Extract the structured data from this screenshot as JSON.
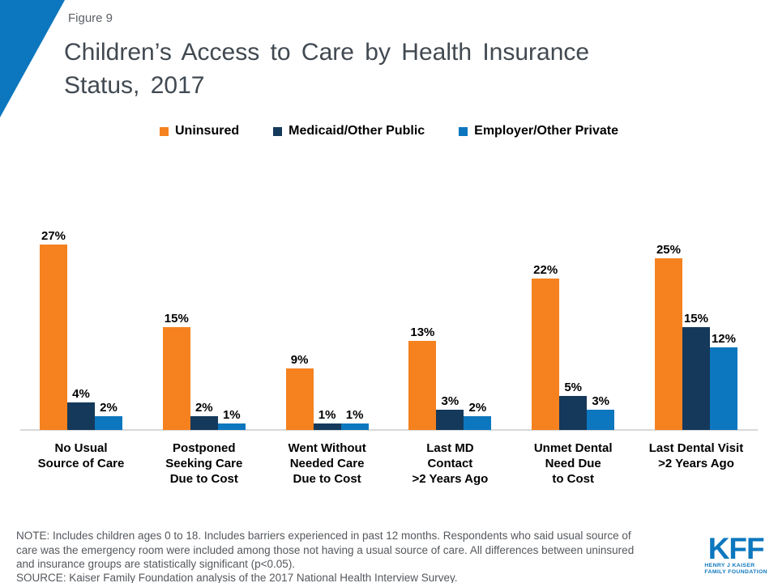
{
  "header": {
    "figure_label": "Figure 9",
    "title": "Children’s Access to Care by Health Insurance\nStatus, 2017"
  },
  "colors": {
    "corner_accent": "#0c77be",
    "axis_line": "#d9d9d9",
    "title_text": "#414951",
    "note_text": "#54585d",
    "logo_blue": "#0c77be"
  },
  "chart_data": {
    "type": "bar",
    "title": "Children’s Access to Care by Health Insurance Status, 2017",
    "xlabel": "",
    "ylabel": "",
    "ylim": [
      0,
      30
    ],
    "grid": false,
    "legend_position": "top",
    "value_suffix": "%",
    "categories": [
      "No Usual\nSource of Care",
      "Postponed\nSeeking Care\nDue to Cost",
      "Went Without\nNeeded Care\nDue to Cost",
      "Last MD\nContact\n>2 Years Ago",
      "Unmet Dental\nNeed Due\nto Cost",
      "Last Dental Visit\n>2 Years Ago"
    ],
    "series": [
      {
        "name": "Uninsured",
        "color": "#f5821f",
        "values": [
          27,
          15,
          9,
          13,
          22,
          25
        ],
        "labels": [
          "27%",
          "15%",
          "9%",
          "13%",
          "22%",
          "25%"
        ]
      },
      {
        "name": "Medicaid/Other Public",
        "color": "#14395b",
        "values": [
          4,
          2,
          1,
          3,
          5,
          15
        ],
        "labels": [
          "4%",
          "2%",
          "1%",
          "3%",
          "5%",
          "15%"
        ]
      },
      {
        "name": "Employer/Other Private",
        "color": "#0c77be",
        "values": [
          2,
          1,
          1,
          2,
          3,
          12
        ],
        "labels": [
          "2%",
          "1%",
          "1%",
          "2%",
          "3%",
          "12%"
        ]
      }
    ]
  },
  "footer": {
    "note": "NOTE: Includes children ages 0 to 18. Includes barriers experienced in past 12 months. Respondents who said usual source of\ncare was the emergency room were included among those not having a usual source of care. All differences between uninsured\nand insurance groups are statistically significant (p<0.05).",
    "source": "SOURCE: Kaiser Family Foundation analysis of the 2017 National Health Interview Survey."
  },
  "logo": {
    "text": "KFF",
    "tagline": "HENRY J KAISER\nFAMILY FOUNDATION"
  }
}
